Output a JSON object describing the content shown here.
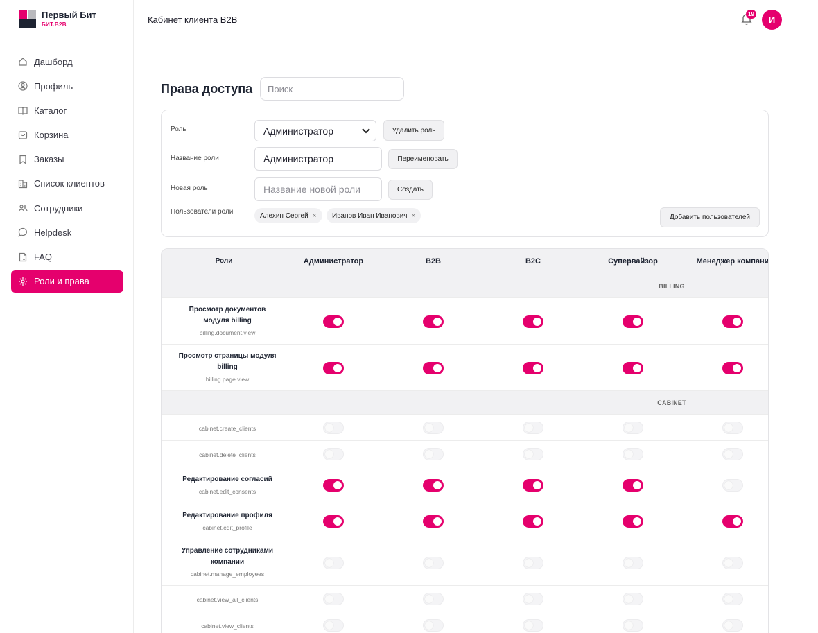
{
  "brand": {
    "title": "Первый Бит",
    "subtitle": "БИТ.B2B",
    "accent": "#e5006d"
  },
  "header": {
    "title": "Кабинет клиента B2B",
    "notifications": "19",
    "avatar": "И"
  },
  "nav": [
    {
      "label": "Дашборд",
      "icon": "home-icon"
    },
    {
      "label": "Профиль",
      "icon": "user-circle-icon"
    },
    {
      "label": "Каталог",
      "icon": "book-icon"
    },
    {
      "label": "Корзина",
      "icon": "cart-icon"
    },
    {
      "label": "Заказы",
      "icon": "bookmark-icon"
    },
    {
      "label": "Список клиентов",
      "icon": "buildings-icon"
    },
    {
      "label": "Сотрудники",
      "icon": "users-icon"
    },
    {
      "label": "Helpdesk",
      "icon": "chat-icon"
    },
    {
      "label": "FAQ",
      "icon": "document-icon"
    },
    {
      "label": "Роли и права",
      "icon": "gear-icon",
      "active": true
    }
  ],
  "page": {
    "title": "Права доступа",
    "search_placeholder": "Поиск"
  },
  "form": {
    "role_label": "Роль",
    "role_value": "Администратор",
    "delete_role": "Удалить роль",
    "role_name_label": "Название роли",
    "role_name_value": "Администратор",
    "rename": "Переименовать",
    "new_role_label": "Новая роль",
    "new_role_placeholder": "Название новой роли",
    "create": "Создать",
    "users_label": "Пользователи роли",
    "users": [
      "Алехин Сергей",
      "Иванов Иван Иванович"
    ],
    "add_users": "Добавить пользователей"
  },
  "table": {
    "columns": [
      "Роли",
      "Администратор",
      "B2B",
      "B2C",
      "Супервайзор",
      "Менеджер компани"
    ],
    "rows": [
      {
        "type": "section",
        "label": "BILLING"
      },
      {
        "type": "perm",
        "name": "Просмотр документов модуля billing",
        "code": "billing.document.view",
        "values": [
          true,
          true,
          true,
          true,
          true
        ]
      },
      {
        "type": "perm",
        "name": "Просмотр страницы модуля billing",
        "code": "billing.page.view",
        "values": [
          true,
          true,
          true,
          true,
          true
        ]
      },
      {
        "type": "section",
        "label": "CABINET"
      },
      {
        "type": "perm",
        "name": "",
        "code": "cabinet.create_clients",
        "values": [
          false,
          false,
          false,
          false,
          false
        ]
      },
      {
        "type": "perm",
        "name": "",
        "code": "cabinet.delete_clients",
        "values": [
          false,
          false,
          false,
          false,
          false
        ]
      },
      {
        "type": "perm",
        "name": "Редактирование согласий",
        "code": "cabinet.edit_consents",
        "values": [
          true,
          true,
          true,
          true,
          false
        ]
      },
      {
        "type": "perm",
        "name": "Редактирование профиля",
        "code": "cabinet.edit_profile",
        "values": [
          true,
          true,
          true,
          true,
          true
        ]
      },
      {
        "type": "perm",
        "name": "Управление сотрудниками компании",
        "code": "cabinet.manage_employees",
        "values": [
          false,
          false,
          false,
          false,
          false
        ]
      },
      {
        "type": "perm",
        "name": "",
        "code": "cabinet.view_all_clients",
        "values": [
          false,
          false,
          false,
          false,
          false
        ]
      },
      {
        "type": "perm",
        "name": "",
        "code": "cabinet.view_clients",
        "values": [
          false,
          false,
          false,
          false,
          false
        ]
      }
    ]
  }
}
